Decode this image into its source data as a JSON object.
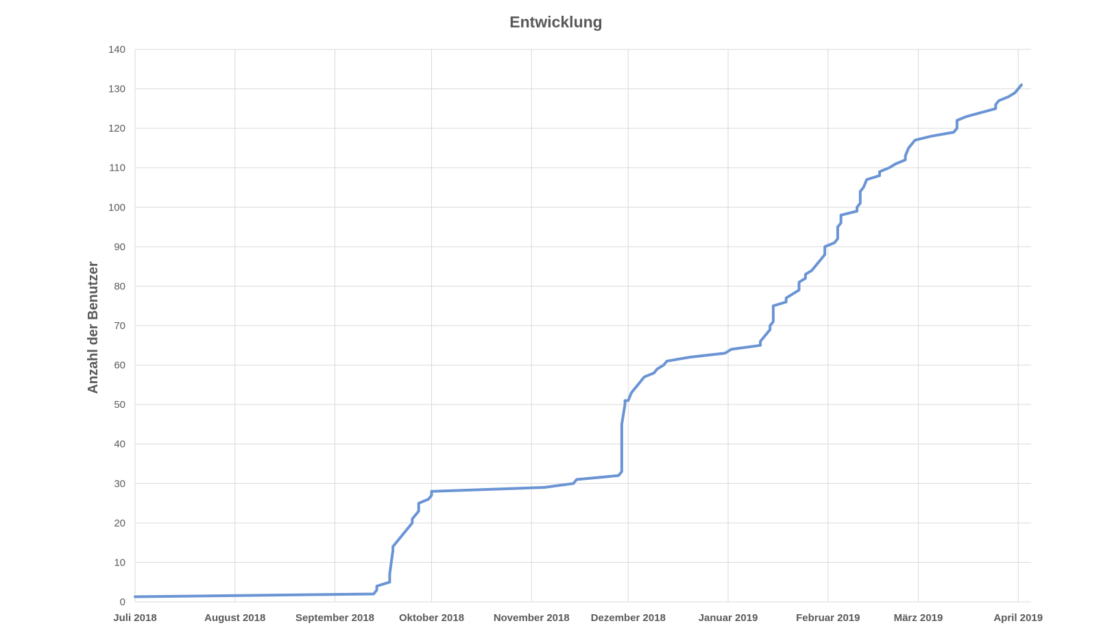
{
  "chart_data": {
    "type": "line",
    "title": "Entwicklung",
    "xlabel": "",
    "ylabel": "Anzahl der Benutzer",
    "ylim": [
      0,
      140
    ],
    "yticks": [
      0,
      10,
      20,
      30,
      40,
      50,
      60,
      70,
      80,
      90,
      100,
      110,
      120,
      130,
      140
    ],
    "xlim": [
      "2018-07-01",
      "2019-04-05"
    ],
    "xtick_dates": [
      "2018-07-01",
      "2018-08-01",
      "2018-09-01",
      "2018-10-01",
      "2018-11-01",
      "2018-12-01",
      "2019-01-01",
      "2019-02-01",
      "2019-03-01",
      "2019-04-01"
    ],
    "xtick_labels": [
      "Juli 2018",
      "August 2018",
      "September 2018",
      "Oktober 2018",
      "November 2018",
      "Dezember 2018",
      "Januar 2019",
      "Februar 2019",
      "März 2019",
      "April 2019"
    ],
    "grid": true,
    "legend": "none",
    "series_color": "#6a94d4",
    "x": [
      "2018-07-01",
      "2018-09-13",
      "2018-09-14",
      "2018-09-14",
      "2018-09-18",
      "2018-09-18",
      "2018-09-19",
      "2018-09-19",
      "2018-09-20",
      "2018-09-25",
      "2018-09-25",
      "2018-09-27",
      "2018-09-27",
      "2018-09-30",
      "2018-10-01",
      "2018-10-01",
      "2018-11-05",
      "2018-11-14",
      "2018-11-15",
      "2018-11-28",
      "2018-11-29",
      "2018-11-29",
      "2018-11-29",
      "2018-11-30",
      "2018-11-30",
      "2018-12-01",
      "2018-12-02",
      "2018-12-03",
      "2018-12-03",
      "2018-12-04",
      "2018-12-06",
      "2018-12-06",
      "2018-12-09",
      "2018-12-10",
      "2018-12-12",
      "2018-12-13",
      "2018-12-13",
      "2018-12-20",
      "2018-12-31",
      "2019-01-02",
      "2019-01-11",
      "2019-01-11",
      "2019-01-14",
      "2019-01-14",
      "2019-01-15",
      "2019-01-15",
      "2019-01-19",
      "2019-01-19",
      "2019-01-23",
      "2019-01-23",
      "2019-01-25",
      "2019-01-25",
      "2019-01-27",
      "2019-01-28",
      "2019-01-31",
      "2019-01-31",
      "2019-02-03",
      "2019-02-04",
      "2019-02-04",
      "2019-02-05",
      "2019-02-05",
      "2019-02-10",
      "2019-02-10",
      "2019-02-11",
      "2019-02-11",
      "2019-02-12",
      "2019-02-13",
      "2019-02-17",
      "2019-02-17",
      "2019-02-20",
      "2019-02-22",
      "2019-02-25",
      "2019-02-25",
      "2019-02-26",
      "2019-02-28",
      "2019-03-05",
      "2019-03-12",
      "2019-03-13",
      "2019-03-13",
      "2019-03-16",
      "2019-03-25",
      "2019-03-25",
      "2019-03-26",
      "2019-03-29",
      "2019-03-31",
      "2019-04-02"
    ],
    "y": [
      1.3,
      2,
      3,
      4,
      5,
      7,
      13,
      14,
      15,
      20,
      21,
      23,
      25,
      26,
      27,
      28,
      29,
      30,
      31,
      32,
      33,
      44,
      45,
      50,
      51,
      51,
      53,
      54,
      54,
      55,
      57,
      57,
      58,
      59,
      60,
      61,
      61,
      62,
      63,
      64,
      65,
      66,
      69,
      70,
      71,
      75,
      76,
      77,
      79,
      81,
      82,
      83,
      84,
      85,
      88,
      90,
      91,
      92,
      95,
      96,
      98,
      99,
      100,
      101,
      104,
      105,
      107,
      108,
      109,
      110,
      111,
      112,
      113,
      115,
      117,
      118,
      119,
      120,
      122,
      123,
      125,
      126,
      127,
      128,
      129,
      131
    ]
  }
}
